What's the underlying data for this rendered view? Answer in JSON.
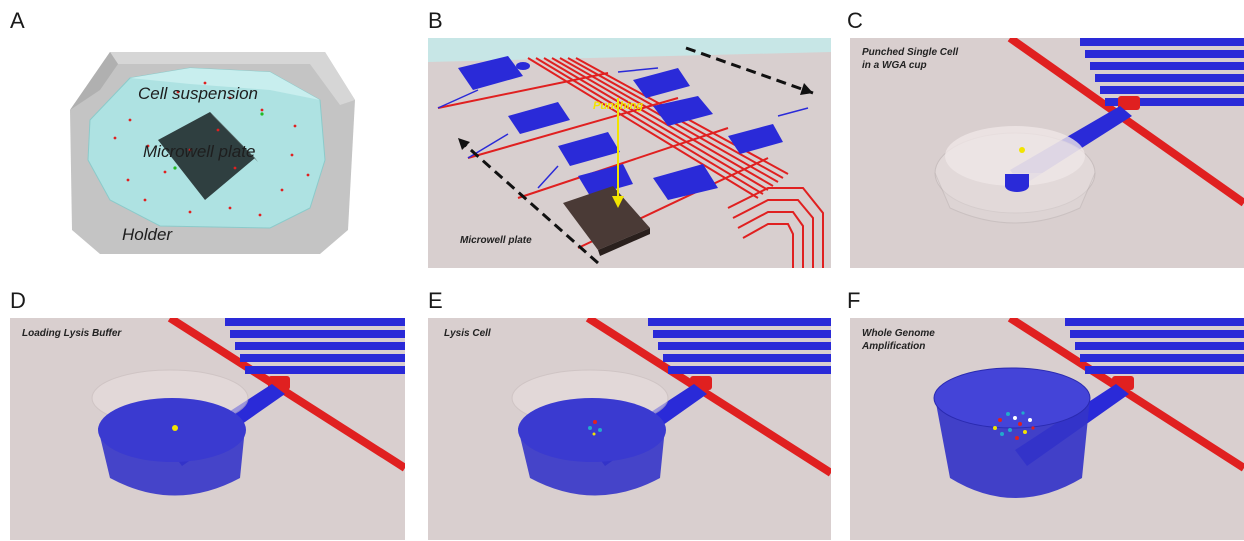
{
  "panels": {
    "a": {
      "letter": "A",
      "labels": {
        "suspension": "Cell suspension",
        "plate": "Microwell plate",
        "holder": "Holder"
      }
    },
    "b": {
      "letter": "B",
      "labels": {
        "punching": "Punching",
        "plate": "Microwell plate"
      }
    },
    "c": {
      "letter": "C",
      "labels": {
        "line1": "Punched Single Cell",
        "line2": "in a WGA cup"
      }
    },
    "d": {
      "letter": "D",
      "labels": {
        "title": "Loading Lysis Buffer"
      }
    },
    "e": {
      "letter": "E",
      "labels": {
        "title": "Lysis Cell"
      }
    },
    "f": {
      "letter": "F",
      "labels": {
        "line1": "Whole Genome",
        "line2": "Amplification"
      }
    }
  },
  "colors": {
    "background": "#d9cfcf",
    "channel_red": "#e02020",
    "channel_blue": "#2a2ad8",
    "buffer_blue": "#3434c8",
    "suspension": "#a8e0e0",
    "holder": "#bdbdbd",
    "cell_yellow": "#f2e400"
  }
}
